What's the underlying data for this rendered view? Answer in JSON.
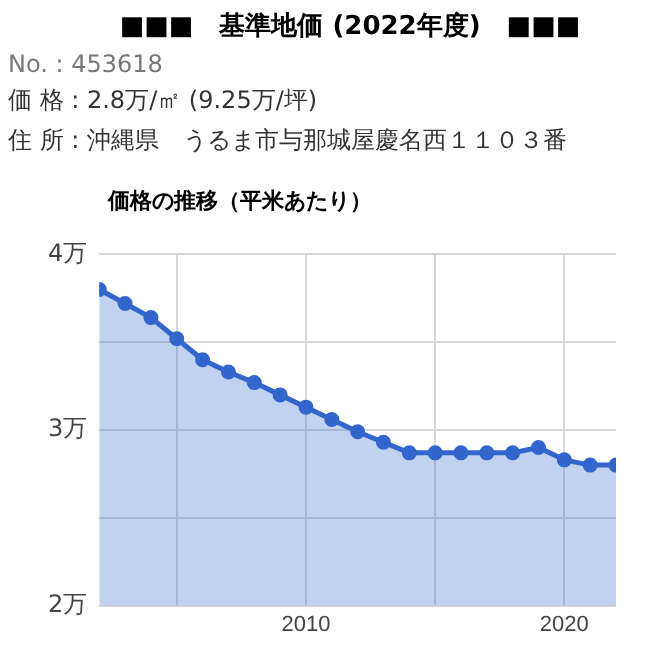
{
  "chart_data": {
    "type": "area",
    "title": "■■■　基準地価 (2022年度)　■■■",
    "subtitle": "価格の推移（平米あたり）",
    "annotations": [
      "No. : 453618",
      "価 格 : 2.8万/㎡ (9.25万/坪)",
      "住 所 : 沖縄県　うるま市与那城屋慶名西１１０３番"
    ],
    "x": [
      2002,
      2003,
      2004,
      2005,
      2006,
      2007,
      2008,
      2009,
      2010,
      2011,
      2012,
      2013,
      2014,
      2015,
      2016,
      2017,
      2018,
      2019,
      2020,
      2021,
      2022
    ],
    "series": [
      {
        "color": "#3366cc",
        "values": [
          3.8,
          3.72,
          3.64,
          3.52,
          3.4,
          3.33,
          3.27,
          3.2,
          3.13,
          3.06,
          2.99,
          2.93,
          2.87,
          2.87,
          2.87,
          2.87,
          2.87,
          2.9,
          2.83,
          2.8,
          2.8
        ]
      }
    ],
    "xlim": [
      2002,
      2022
    ],
    "xticks": [
      {
        "value": 2005,
        "label": null
      },
      2010,
      {
        "value": 2015,
        "label": null
      },
      2020
    ],
    "ylim": [
      2,
      4
    ],
    "yticks": [
      {
        "value": 2,
        "label": "2万"
      },
      {
        "value": 2.5,
        "label": null
      },
      {
        "value": 3,
        "label": "3万"
      },
      {
        "value": 3.5,
        "label": null
      },
      {
        "value": 4,
        "label": "4万"
      }
    ],
    "grid": true,
    "marker": "circle"
  }
}
